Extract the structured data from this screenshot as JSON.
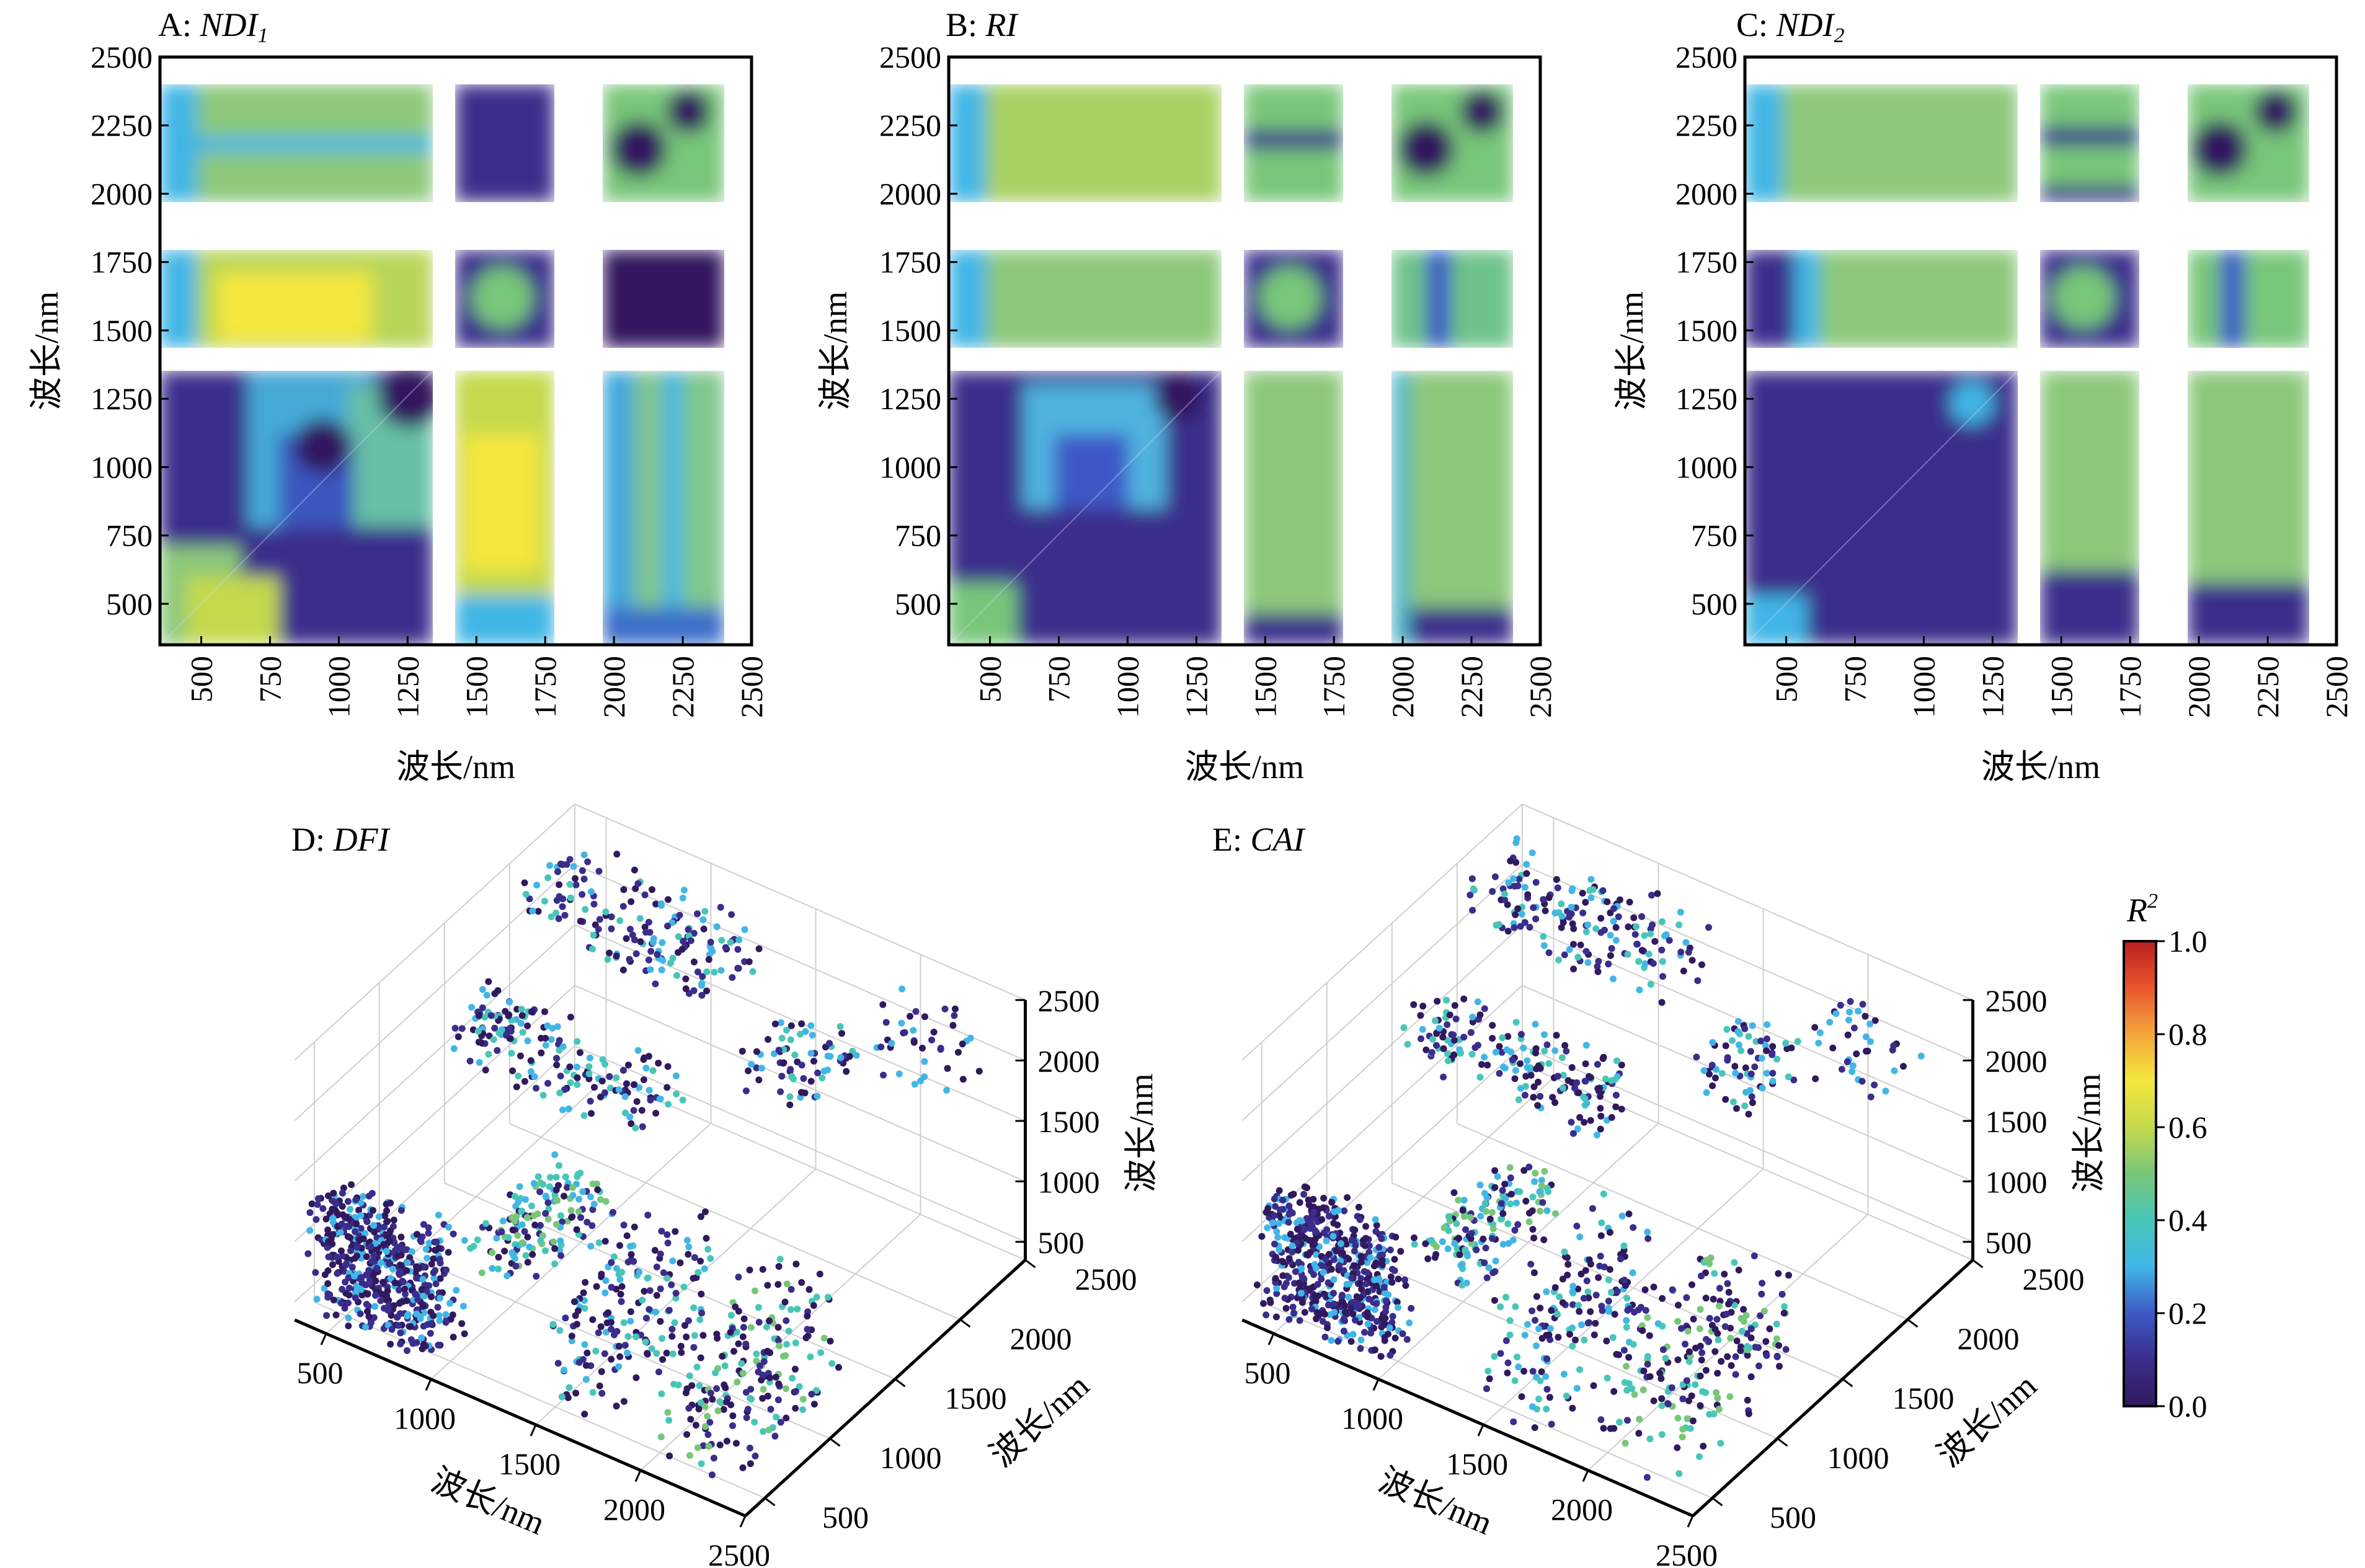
{
  "chart_data": [
    {
      "panel": "A",
      "type": "heatmap",
      "title_prefix": "A: ",
      "title_main": "NDI",
      "title_sub": "1",
      "xlabel": "波长/nm",
      "ylabel": "波长/nm",
      "xlim": [
        350,
        2500
      ],
      "ylim": [
        350,
        2500
      ],
      "xticks": [
        "500",
        "750",
        "1000",
        "1250",
        "1500",
        "1750",
        "2000",
        "2250",
        "2500"
      ],
      "yticks": [
        "500",
        "750",
        "1000",
        "1250",
        "1500",
        "1750",
        "2000",
        "2250",
        "2500"
      ],
      "gap_bands_nm": [
        [
          1350,
          1430
        ],
        [
          1800,
          1970
        ],
        [
          2400,
          2500
        ]
      ]
    },
    {
      "panel": "B",
      "type": "heatmap",
      "title_prefix": "B: ",
      "title_main": "RI",
      "title_sub": "",
      "xlabel": "波长/nm",
      "ylabel": "波长/nm",
      "xlim": [
        350,
        2500
      ],
      "ylim": [
        350,
        2500
      ],
      "xticks": [
        "500",
        "750",
        "1000",
        "1250",
        "1500",
        "1750",
        "2000",
        "2250",
        "2500"
      ],
      "yticks": [
        "500",
        "750",
        "1000",
        "1250",
        "1500",
        "1750",
        "2000",
        "2250",
        "2500"
      ],
      "gap_bands_nm": [
        [
          1350,
          1430
        ],
        [
          1800,
          1970
        ],
        [
          2400,
          2500
        ]
      ]
    },
    {
      "panel": "C",
      "type": "heatmap",
      "title_prefix": "C: ",
      "title_main": "NDI",
      "title_sub": "2",
      "xlabel": "波长/nm",
      "ylabel": "波长/nm",
      "xlim": [
        350,
        2500
      ],
      "ylim": [
        350,
        2500
      ],
      "xticks": [
        "500",
        "750",
        "1000",
        "1250",
        "1500",
        "1750",
        "2000",
        "2250",
        "2500"
      ],
      "yticks": [
        "500",
        "750",
        "1000",
        "1250",
        "1500",
        "1750",
        "2000",
        "2250",
        "2500"
      ],
      "gap_bands_nm": [
        [
          1350,
          1430
        ],
        [
          1800,
          1970
        ],
        [
          2400,
          2500
        ]
      ]
    },
    {
      "panel": "D",
      "type": "scatter",
      "title_prefix": "D: ",
      "title_main": "DFI",
      "xlabel": "波长/nm",
      "ylabel": "波长/nm",
      "zlabel": "波长/nm",
      "xticks": [
        "500",
        "1000",
        "1500",
        "2000",
        "2500"
      ],
      "yticks": [
        "500",
        "1000",
        "1500",
        "2000",
        "2500"
      ],
      "zticks": [
        "500",
        "1000",
        "1500",
        "2000",
        "2500"
      ]
    },
    {
      "panel": "E",
      "type": "scatter",
      "title_prefix": "E: ",
      "title_main": "CAI",
      "xlabel": "波长/nm",
      "ylabel": "波长/nm",
      "zlabel": "波长/nm",
      "xticks": [
        "500",
        "1000",
        "1500",
        "2000",
        "2500"
      ],
      "yticks": [
        "500",
        "1000",
        "1500",
        "2000",
        "2500"
      ],
      "zticks": [
        "500",
        "1000",
        "1500",
        "2000",
        "2500"
      ]
    }
  ],
  "colorbar": {
    "label_main": "R",
    "label_sup": "2",
    "ticks": [
      "1.0",
      "0.8",
      "0.6",
      "0.4",
      "0.2",
      "0.0"
    ],
    "range": [
      0,
      1
    ],
    "colors": [
      "#30195e",
      "#3a2d8b",
      "#3c59c6",
      "#41b6e6",
      "#47c6b8",
      "#78c679",
      "#c4d94c",
      "#f5e73d",
      "#f4a63c",
      "#e9562f",
      "#b8201e"
    ]
  }
}
